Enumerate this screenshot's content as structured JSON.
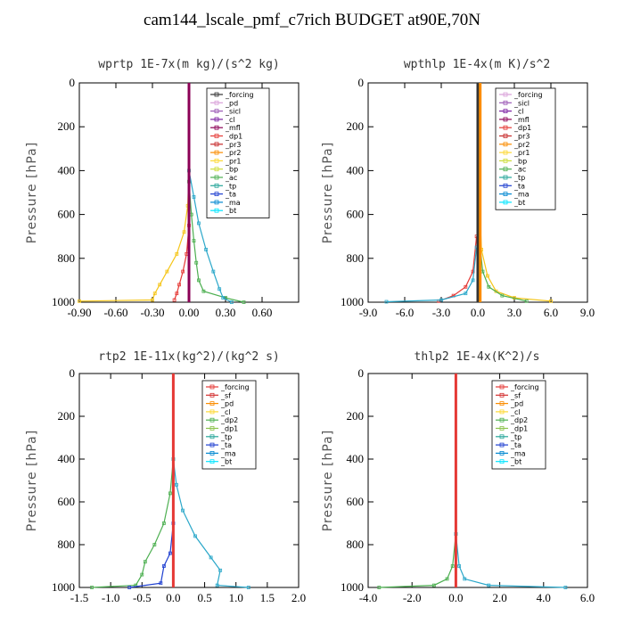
{
  "title": "cam144_lscale_pmf_c7rich  BUDGET at90E,70N",
  "chart_data": [
    {
      "type": "line",
      "title": "wprtp   1E-7x(m kg)/(s^2 kg)",
      "ylabel": "Pressure [hPa]",
      "xlim": [
        -0.9,
        0.9
      ],
      "ylim": [
        1000,
        0
      ],
      "xticks": [
        "-0.90",
        "-0.60",
        "-0.30",
        "0.00",
        "0.30",
        "0.60"
      ],
      "xtick_values": [
        -0.9,
        -0.6,
        -0.3,
        0.0,
        0.3,
        0.6
      ],
      "yticks": [
        0,
        200,
        400,
        600,
        800,
        1000
      ],
      "legend": {
        "entries": [
          "_forcing",
          "_pd",
          "_sicl",
          "_cl",
          "_mfl",
          "_dp1",
          "_pr3",
          "_pr2",
          "_pr1",
          "_bp",
          "_ac",
          "_tp",
          "_ta",
          "_ma",
          "_bt"
        ],
        "colors": [
          "#333333",
          "#d9a0d9",
          "#9b59b6",
          "#7b1fa2",
          "#8b0055",
          "#e53935",
          "#c62828",
          "#fb8c00",
          "#fdd835",
          "#cddc39",
          "#4caf50",
          "#26a69a",
          "#1e3fd0",
          "#0288d1",
          "#00e5ff"
        ]
      },
      "series": [
        {
          "name": "_pr1",
          "color": "#f5c518",
          "x": [
            -0.9,
            -0.3,
            -0.28,
            -0.24,
            -0.18,
            -0.1,
            -0.04,
            -0.01,
            0.0
          ],
          "y": [
            995,
            990,
            960,
            920,
            860,
            780,
            680,
            560,
            400
          ]
        },
        {
          "name": "_dp1",
          "color": "#e53935",
          "x": [
            -0.12,
            -0.1,
            -0.08,
            -0.05,
            -0.02,
            0.0
          ],
          "y": [
            990,
            960,
            920,
            860,
            780,
            650
          ]
        },
        {
          "name": "_ac",
          "color": "#4caf50",
          "x": [
            0.45,
            0.3,
            0.12,
            0.08,
            0.06,
            0.04,
            0.02,
            0.0
          ],
          "y": [
            1000,
            980,
            950,
            900,
            820,
            720,
            600,
            450
          ]
        },
        {
          "name": "_tp",
          "color": "#2aa7c9",
          "x": [
            0.35,
            0.28,
            0.25,
            0.2,
            0.14,
            0.08,
            0.04,
            0.0
          ],
          "y": [
            1000,
            980,
            940,
            860,
            760,
            640,
            520,
            400
          ]
        },
        {
          "name": "_forcing",
          "color": "#333333",
          "x": [
            0.0,
            0.0
          ],
          "y": [
            0,
            1000
          ]
        },
        {
          "name": "_mfl",
          "color": "#8b0055",
          "x": [
            0.0,
            0.0
          ],
          "y": [
            0,
            1000
          ]
        }
      ]
    },
    {
      "type": "line",
      "title": "wpthlp   1E-4x(m K)/s^2",
      "ylabel": "Pressure [hPa]",
      "xlim": [
        -9.0,
        9.0
      ],
      "ylim": [
        1000,
        0
      ],
      "xticks": [
        "-9.0",
        "-6.0",
        "-3.0",
        "0.0",
        "3.0",
        "6.0",
        "9.0"
      ],
      "xtick_values": [
        -9,
        -6,
        -3,
        0,
        3,
        6,
        9
      ],
      "yticks": [
        0,
        200,
        400,
        600,
        800,
        1000
      ],
      "legend": {
        "entries": [
          "_forcing",
          "_sicl",
          "_cl",
          "_mfl",
          "_dp1",
          "_pr3",
          "_pr2",
          "_pr1",
          "_bp",
          "_ac",
          "_tp",
          "_ta",
          "_ma",
          "_bt"
        ],
        "colors": [
          "#d9a0d9",
          "#9b59b6",
          "#7b1fa2",
          "#8b0055",
          "#e53935",
          "#c62828",
          "#fb8c00",
          "#fdd835",
          "#cddc39",
          "#4caf50",
          "#26a69a",
          "#1e3fd0",
          "#0288d1",
          "#00e5ff"
        ]
      },
      "series": [
        {
          "name": "_pr1",
          "color": "#f5c518",
          "x": [
            6.0,
            3.0,
            1.5,
            0.8,
            0.3,
            0.1
          ],
          "y": [
            995,
            980,
            950,
            880,
            760,
            500
          ]
        },
        {
          "name": "_ac",
          "color": "#4caf50",
          "x": [
            4.0,
            2.0,
            0.9,
            0.4,
            0.1
          ],
          "y": [
            995,
            970,
            930,
            860,
            700
          ]
        },
        {
          "name": "_dp1",
          "color": "#e53935",
          "x": [
            -3.2,
            -2.0,
            -1.0,
            -0.4,
            -0.1
          ],
          "y": [
            995,
            970,
            930,
            860,
            700
          ]
        },
        {
          "name": "_tp",
          "color": "#2aa7c9",
          "x": [
            -7.5,
            -3.0,
            -1.0,
            -0.4,
            -0.1
          ],
          "y": [
            998,
            990,
            960,
            900,
            750
          ]
        },
        {
          "name": "_forcing",
          "color": "#333333",
          "x": [
            0.0,
            0.0
          ],
          "y": [
            0,
            1000
          ]
        },
        {
          "name": "_pr2",
          "color": "#fb8c00",
          "x": [
            0.2,
            0.2
          ],
          "y": [
            0,
            1000
          ]
        }
      ]
    },
    {
      "type": "line",
      "title": "rtp2   1E-11x(kg^2)/(kg^2 s)",
      "ylabel": "Pressure [hPa]",
      "xlim": [
        -1.5,
        2.0
      ],
      "ylim": [
        1000,
        0
      ],
      "xticks": [
        "-1.5",
        "-1.0",
        "-0.5",
        "0.0",
        "0.5",
        "1.0",
        "1.5",
        "2.0"
      ],
      "xtick_values": [
        -1.5,
        -1.0,
        -0.5,
        0.0,
        0.5,
        1.0,
        1.5,
        2.0
      ],
      "yticks": [
        0,
        200,
        400,
        600,
        800,
        1000
      ],
      "legend": {
        "entries": [
          "_forcing",
          "_sf",
          "_pd",
          "_cl",
          "_dp2",
          "_dp1",
          "_tp",
          "_ta",
          "_ma",
          "_bt"
        ],
        "colors": [
          "#e53935",
          "#d32f2f",
          "#fb8c00",
          "#fdd835",
          "#4caf50",
          "#8bc34a",
          "#26a69a",
          "#1e3fd0",
          "#0288d1",
          "#00e5ff"
        ]
      },
      "series": [
        {
          "name": "_dp2",
          "color": "#4caf50",
          "x": [
            -1.3,
            -0.6,
            -0.5,
            -0.45,
            -0.3,
            -0.15,
            -0.05,
            0.0
          ],
          "y": [
            1000,
            990,
            940,
            880,
            800,
            700,
            560,
            400
          ]
        },
        {
          "name": "_tp",
          "color": "#2aa7c9",
          "x": [
            1.2,
            0.7,
            0.75,
            0.6,
            0.35,
            0.15,
            0.05,
            0.0
          ],
          "y": [
            1000,
            990,
            920,
            860,
            760,
            640,
            520,
            400
          ]
        },
        {
          "name": "_ta",
          "color": "#1e3fd0",
          "x": [
            -0.7,
            -0.2,
            -0.15,
            -0.05,
            0.0
          ],
          "y": [
            1000,
            980,
            900,
            840,
            700
          ]
        },
        {
          "name": "_forcing",
          "color": "#e53935",
          "x": [
            0.0,
            0.0
          ],
          "y": [
            0,
            1000
          ]
        }
      ]
    },
    {
      "type": "line",
      "title": "thlp2   1E-4x(K^2)/s",
      "ylabel": "Pressure [hPa]",
      "xlim": [
        -4.0,
        6.0
      ],
      "ylim": [
        1000,
        0
      ],
      "xticks": [
        "-4.0",
        "-2.0",
        "0.0",
        "2.0",
        "4.0",
        "6.0"
      ],
      "xtick_values": [
        -4,
        -2,
        0,
        2,
        4,
        6
      ],
      "yticks": [
        0,
        200,
        400,
        600,
        800,
        1000
      ],
      "legend": {
        "entries": [
          "_forcing",
          "_sf",
          "_pd",
          "_cl",
          "_dp2",
          "_dp1",
          "_tp",
          "_ta",
          "_ma",
          "_bt"
        ],
        "colors": [
          "#e53935",
          "#d32f2f",
          "#fb8c00",
          "#fdd835",
          "#4caf50",
          "#8bc34a",
          "#26a69a",
          "#1e3fd0",
          "#0288d1",
          "#00e5ff"
        ]
      },
      "series": [
        {
          "name": "_dp2",
          "color": "#4caf50",
          "x": [
            -3.5,
            -1.0,
            -0.4,
            -0.15,
            0.0
          ],
          "y": [
            1000,
            990,
            960,
            900,
            750
          ]
        },
        {
          "name": "_tp",
          "color": "#2aa7c9",
          "x": [
            5.0,
            1.5,
            0.4,
            0.15,
            0.0
          ],
          "y": [
            1000,
            990,
            960,
            900,
            750
          ]
        },
        {
          "name": "_forcing",
          "color": "#e53935",
          "x": [
            0.0,
            0.0
          ],
          "y": [
            0,
            1000
          ]
        }
      ]
    }
  ]
}
